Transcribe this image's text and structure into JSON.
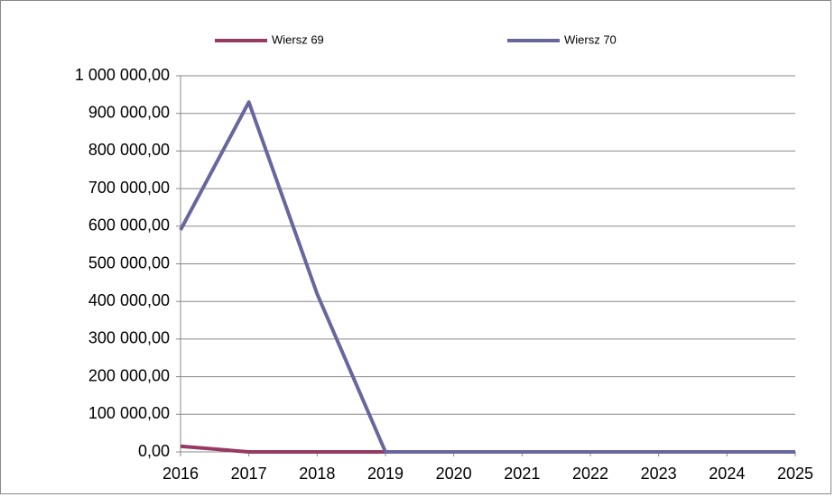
{
  "chart_data": {
    "type": "line",
    "categories": [
      "2016",
      "2017",
      "2018",
      "2019",
      "2020",
      "2021",
      "2022",
      "2023",
      "2024",
      "2025"
    ],
    "series": [
      {
        "name": "Wiersz 69",
        "color": "#953a62",
        "values": [
          15000,
          0,
          0,
          0,
          0,
          0,
          0,
          0,
          0,
          0
        ]
      },
      {
        "name": "Wiersz 70",
        "color": "#67679e",
        "values": [
          590000,
          930000,
          420000,
          0,
          0,
          0,
          0,
          0,
          0,
          0
        ]
      }
    ],
    "ylim": [
      0,
      1000000
    ],
    "yticks": [
      {
        "value": 0,
        "label": "0,00"
      },
      {
        "value": 100000,
        "label": "100 000,00"
      },
      {
        "value": 200000,
        "label": "200 000,00"
      },
      {
        "value": 300000,
        "label": "300 000,00"
      },
      {
        "value": 400000,
        "label": "400 000,00"
      },
      {
        "value": 500000,
        "label": "500 000,00"
      },
      {
        "value": 600000,
        "label": "600 000,00"
      },
      {
        "value": 700000,
        "label": "700 000,00"
      },
      {
        "value": 800000,
        "label": "800 000,00"
      },
      {
        "value": 900000,
        "label": "900 000,00"
      },
      {
        "value": 1000000,
        "label": "1 000 000,00"
      }
    ],
    "grid": true,
    "legend": "top"
  }
}
